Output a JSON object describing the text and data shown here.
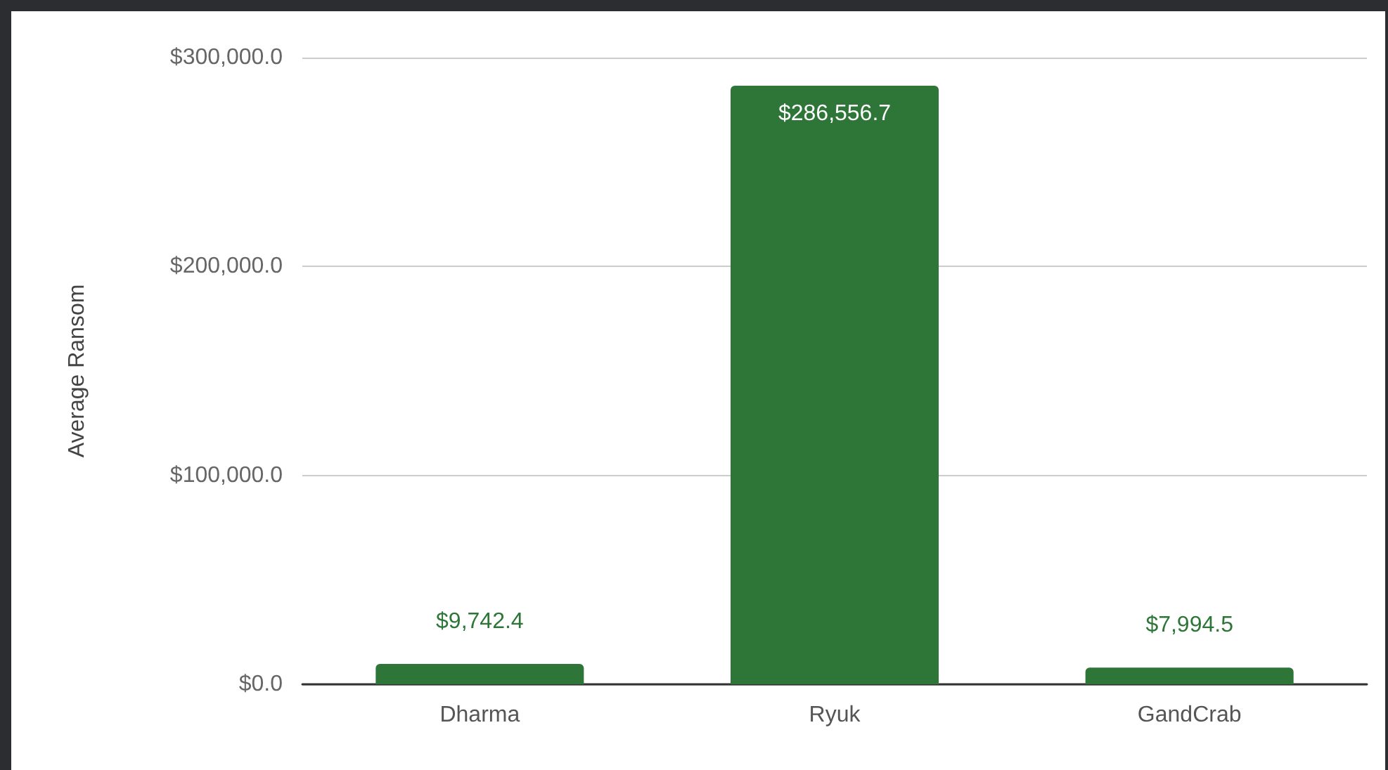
{
  "chart_data": {
    "type": "bar",
    "ylabel": "Average Ransom",
    "categories": [
      "Dharma",
      "Ryuk",
      "GandCrab"
    ],
    "values": [
      9742.4,
      286556.7,
      7994.5
    ],
    "color": "#2e7538",
    "value_labels": [
      "$9,742.4",
      "$286,556.7",
      "$7,994.5"
    ],
    "ylim": [
      0,
      300000
    ],
    "yticks": [
      {
        "value": 0,
        "label": "$0.0"
      },
      {
        "value": 100000,
        "label": "$100,000.0"
      },
      {
        "value": 200000,
        "label": "$200,000.0"
      },
      {
        "value": 300000,
        "label": "$300,000.0"
      }
    ],
    "grid": "y"
  }
}
